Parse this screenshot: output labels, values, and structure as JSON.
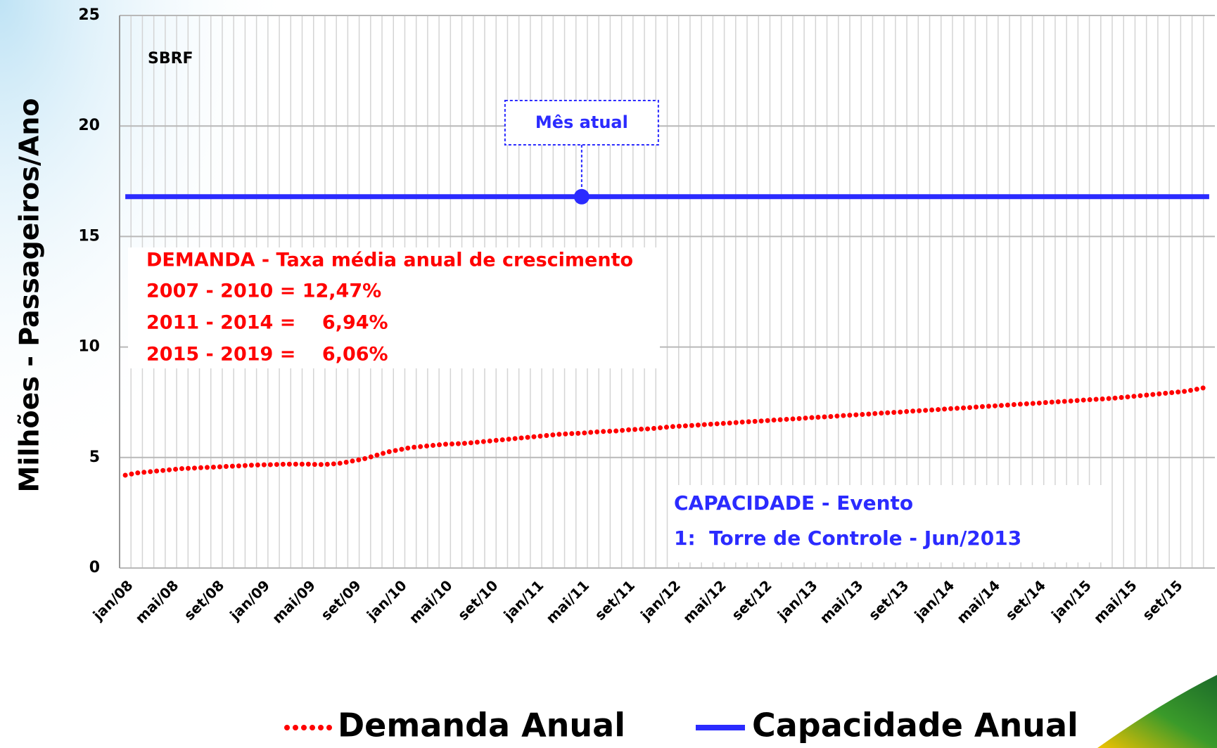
{
  "chart_data": {
    "type": "line",
    "annotations": {
      "airport": "SBRF",
      "callout": "Mês atual",
      "demand_title": "DEMANDA - Taxa média anual de crescimento",
      "demand_rates": [
        "2007 - 2010 = 12,47%",
        "2011 - 2014 =    6,94%",
        "2015 - 2019 =    6,06%"
      ],
      "capacity_title": "CAPACIDADE - Evento",
      "capacity_event": "1:  Torre de Controle - Jun/2013"
    },
    "y_label": "Milhões - Passageiros/Ano",
    "categories": [
      "jan/08",
      null,
      null,
      null,
      "mai/08",
      null,
      null,
      null,
      "set/08",
      null,
      null,
      null,
      "jan/09",
      null,
      null,
      null,
      "mai/09",
      null,
      null,
      null,
      "set/09",
      null,
      null,
      null,
      "jan/10",
      null,
      null,
      null,
      "mai/10",
      null,
      null,
      null,
      "set/10",
      null,
      null,
      null,
      "jan/11",
      null,
      null,
      null,
      "mai/11",
      null,
      null,
      null,
      "set/11",
      null,
      null,
      null,
      "jan/12",
      null,
      null,
      null,
      "mai/12",
      null,
      null,
      null,
      "set/12",
      null,
      null,
      null,
      "jan/13",
      null,
      null,
      null,
      "mai/13",
      null,
      null,
      null,
      "set/13",
      null,
      null,
      null,
      "jan/14",
      null,
      null,
      null,
      "mai/14",
      null,
      null,
      null,
      "set/14",
      null,
      null,
      null,
      "jan/15",
      null,
      null,
      null,
      "mai/15",
      null,
      null,
      null,
      "set/15",
      null,
      null,
      null
    ],
    "series": [
      {
        "name": "Demanda Anual",
        "color": "#ff0000",
        "style": "dotted",
        "values": [
          4.2,
          4.3,
          4.35,
          4.4,
          4.45,
          4.5,
          4.52,
          4.55,
          4.57,
          4.6,
          4.62,
          4.65,
          4.67,
          4.68,
          4.7,
          4.7,
          4.7,
          4.68,
          4.7,
          4.75,
          4.85,
          4.95,
          5.1,
          5.25,
          5.35,
          5.45,
          5.5,
          5.55,
          5.6,
          5.62,
          5.65,
          5.7,
          5.75,
          5.8,
          5.85,
          5.9,
          5.95,
          6.0,
          6.05,
          6.08,
          6.1,
          6.15,
          6.18,
          6.2,
          6.25,
          6.28,
          6.3,
          6.35,
          6.4,
          6.43,
          6.46,
          6.5,
          6.53,
          6.56,
          6.6,
          6.63,
          6.66,
          6.7,
          6.73,
          6.76,
          6.8,
          6.83,
          6.86,
          6.9,
          6.93,
          6.96,
          7.0,
          7.03,
          7.06,
          7.1,
          7.13,
          7.16,
          7.2,
          7.23,
          7.26,
          7.3,
          7.33,
          7.36,
          7.4,
          7.43,
          7.46,
          7.5,
          7.53,
          7.56,
          7.6,
          7.63,
          7.66,
          7.7,
          7.75,
          7.8,
          7.85,
          7.9,
          7.95,
          8.0,
          8.1,
          8.2
        ]
      },
      {
        "name": "Capacidade Anual",
        "color": "#2b2bff",
        "style": "solid",
        "values": [
          16.8,
          16.8,
          16.8,
          16.8,
          16.8,
          16.8,
          16.8,
          16.8,
          16.8,
          16.8,
          16.8,
          16.8,
          16.8,
          16.8,
          16.8,
          16.8,
          16.8,
          16.8,
          16.8,
          16.8,
          16.8,
          16.8,
          16.8,
          16.8,
          16.8,
          16.8,
          16.8,
          16.8,
          16.8,
          16.8,
          16.8,
          16.8,
          16.8,
          16.8,
          16.8,
          16.8,
          16.8,
          16.8,
          16.8,
          16.8,
          16.8,
          16.8,
          16.8,
          16.8,
          16.8,
          16.8,
          16.8,
          16.8,
          16.8,
          16.8,
          16.8,
          16.8,
          16.8,
          16.8,
          16.8,
          16.8,
          16.8,
          16.8,
          16.8,
          16.8,
          16.8,
          16.8,
          16.8,
          16.8,
          16.8,
          16.8,
          16.8,
          16.8,
          16.8,
          16.8,
          16.8,
          16.8,
          16.8,
          16.8,
          16.8,
          16.8,
          16.8,
          16.8,
          16.8,
          16.8,
          16.8,
          16.8,
          16.8,
          16.8,
          16.8,
          16.8,
          16.8,
          16.8,
          16.8,
          16.8,
          16.8,
          16.8,
          16.8,
          16.8,
          16.8,
          16.8
        ]
      }
    ],
    "ylim": [
      0,
      25
    ],
    "yticks": [
      0,
      5,
      10,
      15,
      20,
      25
    ],
    "grid": true,
    "legend": "bottom"
  }
}
